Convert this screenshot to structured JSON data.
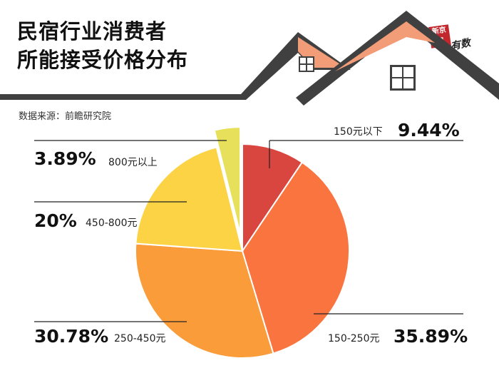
{
  "title": {
    "line1": "民宿行业消费者",
    "line2": "所能接受价格分布"
  },
  "source": "数据来源：前瞻研究院",
  "stamp": {
    "red": "新京报",
    "black": "有数"
  },
  "colors": {
    "slice_150_below": "#d9463f",
    "slice_150_250": "#f9743f",
    "slice_250_450": "#fb9c3b",
    "slice_450_800": "#fbd345",
    "slice_800_above": "#e6e05a",
    "roof": "#404040",
    "roof_inner": "#f29d77"
  },
  "chart_data": {
    "type": "pie",
    "title": "民宿行业消费者所能接受价格分布",
    "categories": [
      "150元以下",
      "150-250元",
      "250-450元",
      "450-800元",
      "800元以上"
    ],
    "values": [
      9.44,
      35.89,
      30.78,
      20,
      3.89
    ],
    "labels": [
      "9.44%",
      "35.89%",
      "30.78%",
      "20%",
      "3.89%"
    ],
    "exploded": [
      false,
      false,
      false,
      false,
      true
    ]
  }
}
